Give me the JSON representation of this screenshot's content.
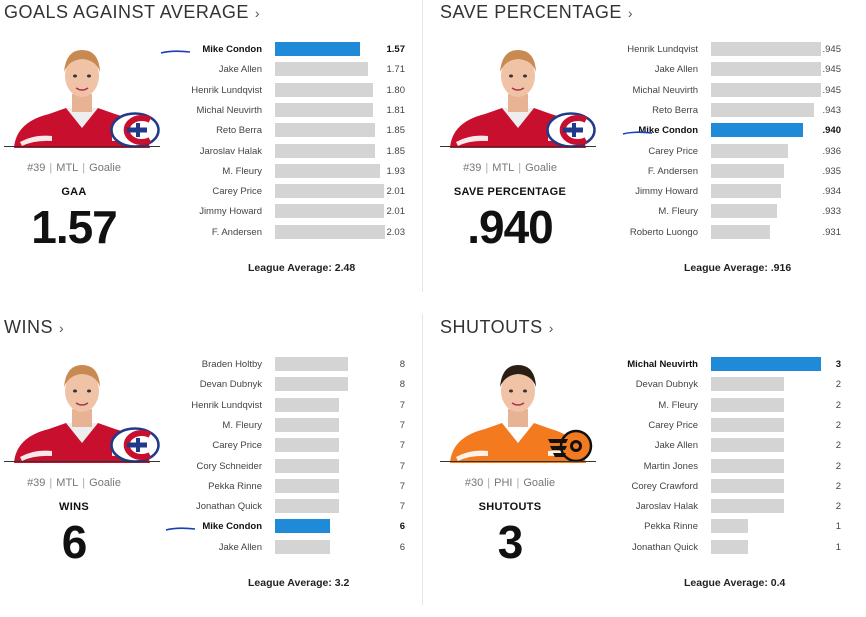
{
  "colors": {
    "highlight": "#1f8ad7",
    "bar": "#d4d4d4"
  },
  "panels": [
    {
      "title": "GOALS AGAINST AVERAGE",
      "chevron": "›",
      "player": {
        "number": "#39",
        "team": "MTL",
        "position": "Goalie",
        "team_logo": "canadiens-logo"
      },
      "stat_label": "GAA",
      "stat_value": "1.57",
      "league_average": "League Average: 2.48"
    },
    {
      "title": "SAVE PERCENTAGE",
      "chevron": "›",
      "player": {
        "number": "#39",
        "team": "MTL",
        "position": "Goalie",
        "team_logo": "canadiens-logo"
      },
      "stat_label": "SAVE PERCENTAGE",
      "stat_value": ".940",
      "league_average": "League Average: .916"
    },
    {
      "title": "WINS",
      "chevron": "›",
      "player": {
        "number": "#39",
        "team": "MTL",
        "position": "Goalie",
        "team_logo": "canadiens-logo"
      },
      "stat_label": "WINS",
      "stat_value": "6",
      "league_average": "League Average: 3.2"
    },
    {
      "title": "SHUTOUTS",
      "chevron": "›",
      "player": {
        "number": "#30",
        "team": "PHI",
        "position": "Goalie",
        "team_logo": "flyers-logo"
      },
      "stat_label": "SHUTOUTS",
      "stat_value": "3",
      "league_average": "League Average: 0.4"
    }
  ],
  "chart_data": [
    {
      "type": "bar",
      "orientation": "horizontal",
      "categories": [
        "Mike Condon",
        "Jake Allen",
        "Henrik Lundqvist",
        "Michal Neuvirth",
        "Reto Berra",
        "Jaroslav Halak",
        "M. Fleury",
        "Carey Price",
        "Jimmy Howard",
        "F. Andersen"
      ],
      "values": [
        1.57,
        1.71,
        1.8,
        1.81,
        1.85,
        1.85,
        1.93,
        2.01,
        2.01,
        2.03
      ],
      "labels": [
        "1.57",
        "1.71",
        "1.80",
        "1.81",
        "1.85",
        "1.85",
        "1.93",
        "2.01",
        "2.01",
        "2.03"
      ],
      "highlight": 0,
      "xlim": [
        0,
        2.03
      ]
    },
    {
      "type": "bar",
      "orientation": "horizontal",
      "categories": [
        "Henrik Lundqvist",
        "Jake Allen",
        "Michal Neuvirth",
        "Reto Berra",
        "Mike Condon",
        "Carey Price",
        "F. Andersen",
        "Jimmy Howard",
        "M. Fleury",
        "Roberto Luongo"
      ],
      "values": [
        0.945,
        0.945,
        0.945,
        0.943,
        0.94,
        0.936,
        0.935,
        0.934,
        0.933,
        0.931
      ],
      "labels": [
        ".945",
        ".945",
        ".945",
        ".943",
        ".940",
        ".936",
        ".935",
        ".934",
        ".933",
        ".931"
      ],
      "highlight": 4,
      "xlim": [
        0.915,
        0.945
      ]
    },
    {
      "type": "bar",
      "orientation": "horizontal",
      "categories": [
        "Braden Holtby",
        "Devan Dubnyk",
        "Henrik Lundqvist",
        "M. Fleury",
        "Carey Price",
        "Cory Schneider",
        "Pekka Rinne",
        "Jonathan Quick",
        "Mike Condon",
        "Jake Allen"
      ],
      "values": [
        8,
        8,
        7,
        7,
        7,
        7,
        7,
        7,
        6,
        6
      ],
      "labels": [
        "8",
        "8",
        "7",
        "7",
        "7",
        "7",
        "7",
        "7",
        "6",
        "6"
      ],
      "highlight": 8,
      "xlim": [
        0,
        12
      ]
    },
    {
      "type": "bar",
      "orientation": "horizontal",
      "categories": [
        "Michal Neuvirth",
        "Devan Dubnyk",
        "M. Fleury",
        "Carey Price",
        "Jake Allen",
        "Martin Jones",
        "Corey Crawford",
        "Jaroslav Halak",
        "Pekka Rinne",
        "Jonathan Quick"
      ],
      "values": [
        3,
        2,
        2,
        2,
        2,
        2,
        2,
        2,
        1,
        1
      ],
      "labels": [
        "3",
        "2",
        "2",
        "2",
        "2",
        "2",
        "2",
        "2",
        "1",
        "1"
      ],
      "highlight": 0,
      "xlim": [
        0,
        3
      ]
    }
  ]
}
